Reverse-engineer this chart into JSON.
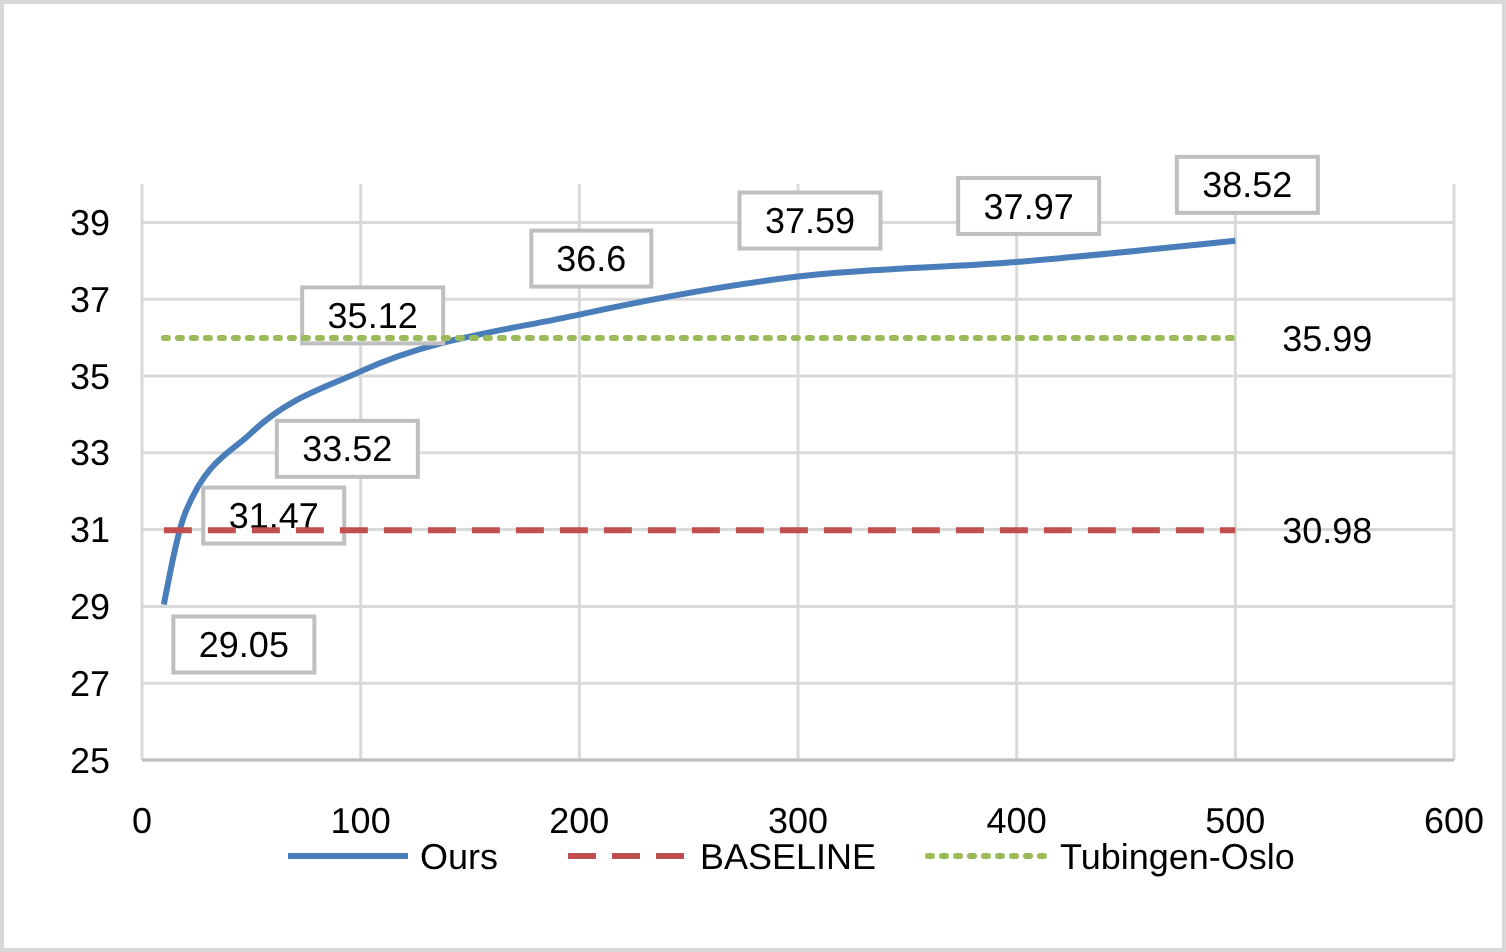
{
  "chart_data": {
    "type": "line",
    "x": [
      10,
      20,
      50,
      100,
      200,
      300,
      400,
      500
    ],
    "series": [
      {
        "name": "Ours",
        "color": "#4a7ebb",
        "line_style": "solid",
        "values": [
          29.05,
          31.47,
          33.52,
          35.12,
          36.6,
          37.59,
          37.97,
          38.52
        ]
      },
      {
        "name": "BASELINE",
        "color": "#c0504d",
        "line_style": "dashed",
        "values": [
          30.98,
          30.98,
          30.98,
          30.98,
          30.98,
          30.98,
          30.98,
          30.98
        ],
        "value_labels": [
          null,
          null,
          null,
          null,
          null,
          null,
          null,
          "30.98"
        ]
      },
      {
        "name": "Tubingen-Oslo",
        "color": "#9bbb59",
        "line_style": "dotted",
        "values": [
          35.99,
          35.99,
          35.99,
          35.99,
          35.99,
          35.99,
          35.99,
          35.99
        ],
        "value_labels": [
          null,
          null,
          null,
          null,
          null,
          null,
          null,
          "35.99"
        ]
      }
    ],
    "data_labels": true,
    "xlim": [
      0,
      600
    ],
    "xticks": [
      0,
      100,
      200,
      300,
      400,
      500,
      600
    ],
    "ylim": [
      25,
      40
    ],
    "yticks": [
      25,
      27,
      29,
      31,
      33,
      35,
      37,
      39
    ],
    "grid": true,
    "legend": "bottom",
    "marker": "none"
  }
}
